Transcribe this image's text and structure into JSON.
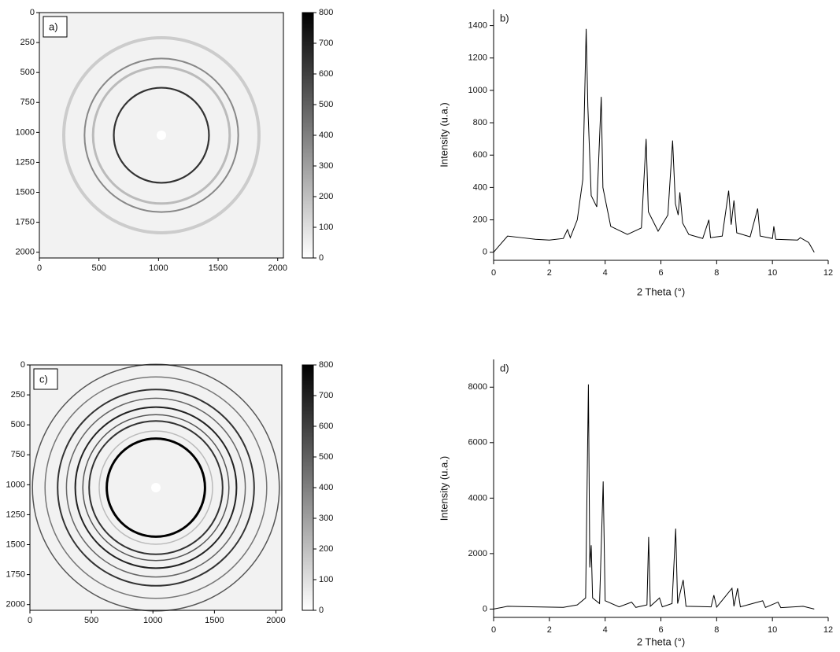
{
  "chart_data": [
    {
      "type": "image",
      "label": "a)",
      "xlim": [
        0,
        2048
      ],
      "ylim": [
        2048,
        0
      ],
      "xticks": [
        0,
        500,
        1000,
        1500,
        2000
      ],
      "yticks": [
        0,
        250,
        500,
        750,
        1000,
        1250,
        1500,
        1750,
        2000
      ],
      "colorbar_lim": [
        0,
        800
      ],
      "colorbar_ticks": [
        0,
        100,
        200,
        300,
        400,
        500,
        600,
        700,
        800
      ]
    },
    {
      "type": "line",
      "label": "b)",
      "x_label": "2 Theta (°)",
      "y_label": "Intensity (u.a.)",
      "color": "#000000",
      "xlim": [
        0,
        12
      ],
      "ylim": [
        -50,
        1500
      ],
      "xticks": [
        0,
        2,
        4,
        6,
        8,
        10,
        12
      ],
      "yticks": [
        0,
        200,
        400,
        600,
        800,
        1000,
        1200,
        1400
      ],
      "x": [
        0,
        0.2,
        0.5,
        1.0,
        1.5,
        2.0,
        2.5,
        2.65,
        2.75,
        3.0,
        3.2,
        3.32,
        3.38,
        3.5,
        3.7,
        3.86,
        3.92,
        4.2,
        4.8,
        5.3,
        5.47,
        5.55,
        5.9,
        6.25,
        6.42,
        6.52,
        6.62,
        6.68,
        6.78,
        7.0,
        7.5,
        7.72,
        7.78,
        8.2,
        8.43,
        8.52,
        8.62,
        8.72,
        9.2,
        9.47,
        9.56,
        10.0,
        10.05,
        10.12,
        10.9,
        11.0,
        11.3,
        11.5
      ],
      "values": [
        0,
        40,
        100,
        90,
        80,
        75,
        85,
        140,
        90,
        200,
        450,
        1380,
        900,
        350,
        280,
        960,
        400,
        160,
        110,
        150,
        700,
        250,
        130,
        230,
        690,
        300,
        230,
        370,
        180,
        110,
        85,
        200,
        90,
        100,
        380,
        170,
        320,
        120,
        95,
        270,
        100,
        85,
        160,
        80,
        75,
        90,
        60,
        0
      ]
    },
    {
      "type": "image",
      "label": "c)",
      "xlim": [
        0,
        2048
      ],
      "ylim": [
        2048,
        0
      ],
      "xticks": [
        0,
        500,
        1000,
        1500,
        2000
      ],
      "yticks": [
        0,
        250,
        500,
        750,
        1000,
        1250,
        1500,
        1750,
        2000
      ],
      "colorbar_lim": [
        0,
        800
      ],
      "colorbar_ticks": [
        0,
        100,
        200,
        300,
        400,
        500,
        600,
        700,
        800
      ]
    },
    {
      "type": "line",
      "label": "d)",
      "x_label": "2 Theta (°)",
      "y_label": "Intensity (u.a.)",
      "color": "#000000",
      "xlim": [
        0,
        12
      ],
      "ylim": [
        -300,
        9000
      ],
      "xticks": [
        0,
        2,
        4,
        6,
        8,
        10,
        12
      ],
      "yticks": [
        0,
        2000,
        4000,
        6000,
        8000
      ],
      "x": [
        0,
        0.5,
        1.5,
        2.5,
        3.0,
        3.3,
        3.4,
        3.45,
        3.5,
        3.55,
        3.8,
        3.93,
        4.0,
        4.5,
        4.95,
        5.1,
        5.5,
        5.56,
        5.62,
        5.95,
        6.05,
        6.4,
        6.53,
        6.6,
        6.8,
        6.9,
        7.8,
        7.9,
        8.0,
        8.55,
        8.62,
        8.75,
        8.85,
        9.65,
        9.75,
        10.2,
        10.3,
        11.1,
        11.5
      ],
      "values": [
        0,
        100,
        80,
        60,
        150,
        400,
        8100,
        1500,
        2300,
        400,
        200,
        4600,
        300,
        80,
        250,
        60,
        150,
        2600,
        100,
        400,
        80,
        200,
        2900,
        200,
        1050,
        100,
        80,
        500,
        70,
        750,
        100,
        750,
        80,
        300,
        60,
        250,
        50,
        100,
        0
      ]
    }
  ]
}
